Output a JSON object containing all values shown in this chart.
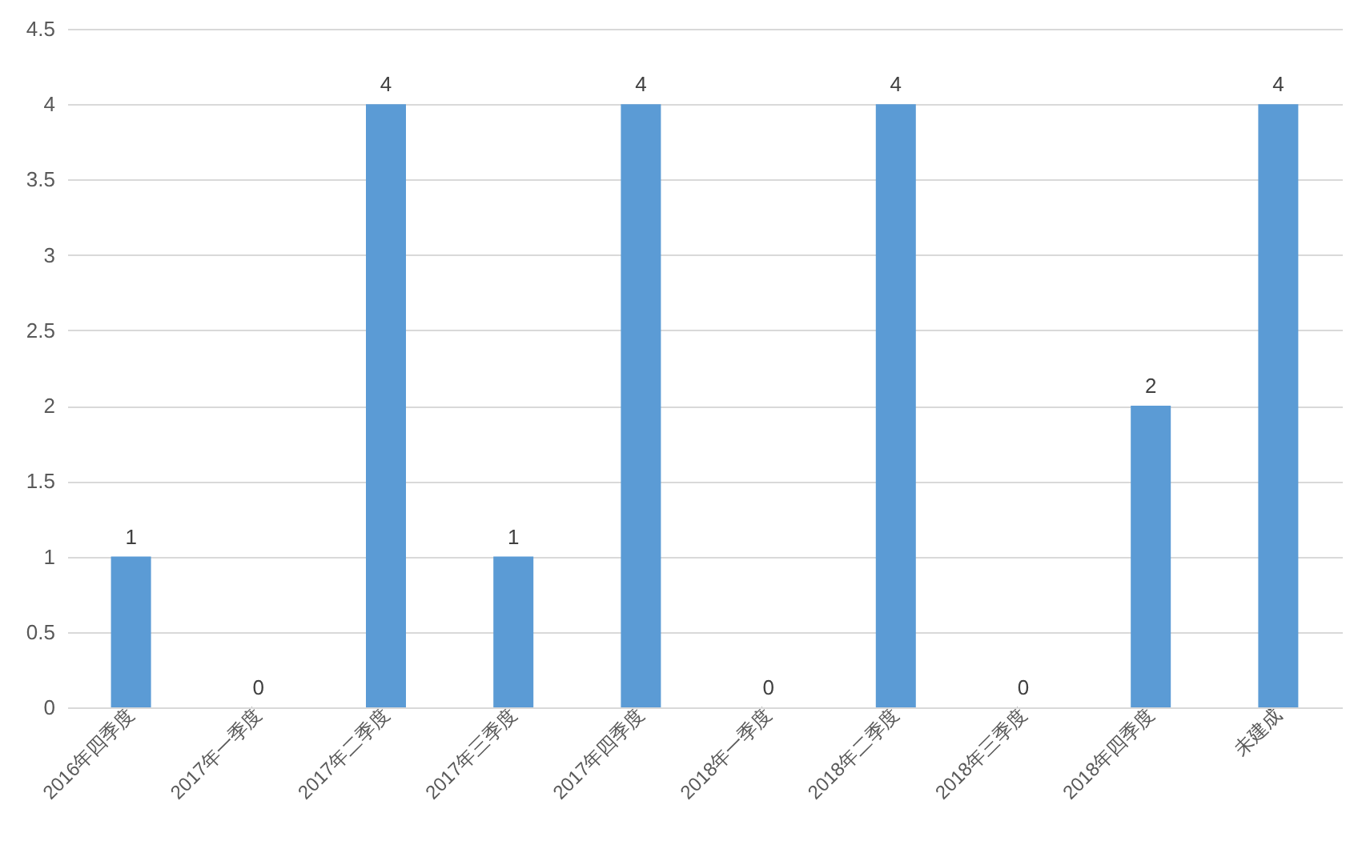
{
  "chart_data": {
    "type": "bar",
    "categories": [
      "2016年四季度",
      "2017年一季度",
      "2017年二季度",
      "2017年三季度",
      "2017年四季度",
      "2018年一季度",
      "2018年二季度",
      "2018年三季度",
      "2018年四季度",
      "未建成"
    ],
    "values": [
      1,
      0,
      4,
      1,
      4,
      0,
      4,
      0,
      2,
      4
    ],
    "color": "#5b9bd5",
    "ylim": [
      0,
      4.5
    ],
    "yticks": [
      0,
      0.5,
      1,
      1.5,
      2,
      2.5,
      3,
      3.5,
      4,
      4.5
    ],
    "grid": "y",
    "data_labels": true
  }
}
